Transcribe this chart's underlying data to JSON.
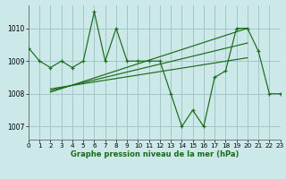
{
  "title": "Graphe pression niveau de la mer (hPa)",
  "bg_color": "#cce8e8",
  "grid_color": "#a0c8c8",
  "line_color": "#1a6b1a",
  "hours": [
    0,
    1,
    2,
    3,
    4,
    5,
    6,
    7,
    8,
    9,
    10,
    11,
    12,
    13,
    14,
    15,
    16,
    17,
    18,
    19,
    20,
    21,
    22,
    23
  ],
  "pressure": [
    1009.4,
    1009.0,
    1008.8,
    1009.0,
    1008.8,
    1009.0,
    1010.5,
    1009.0,
    1010.0,
    1009.0,
    1009.0,
    1009.0,
    1009.0,
    1008.0,
    1007.0,
    1007.5,
    1007.0,
    1008.5,
    1008.7,
    1010.0,
    1010.0,
    1009.3,
    1008.0,
    1008.0
  ],
  "trend1_x": [
    2,
    20
  ],
  "trend1_y": [
    1008.05,
    1010.0
  ],
  "trend2_x": [
    2,
    20
  ],
  "trend2_y": [
    1008.1,
    1009.55
  ],
  "trend3_x": [
    2,
    20
  ],
  "trend3_y": [
    1008.15,
    1009.1
  ],
  "ylim": [
    1006.6,
    1010.7
  ],
  "yticks": [
    1007,
    1008,
    1009,
    1010
  ],
  "xlim": [
    0,
    23
  ],
  "xlabel_fontsize": 6.0,
  "tick_fontsize": 5.2
}
